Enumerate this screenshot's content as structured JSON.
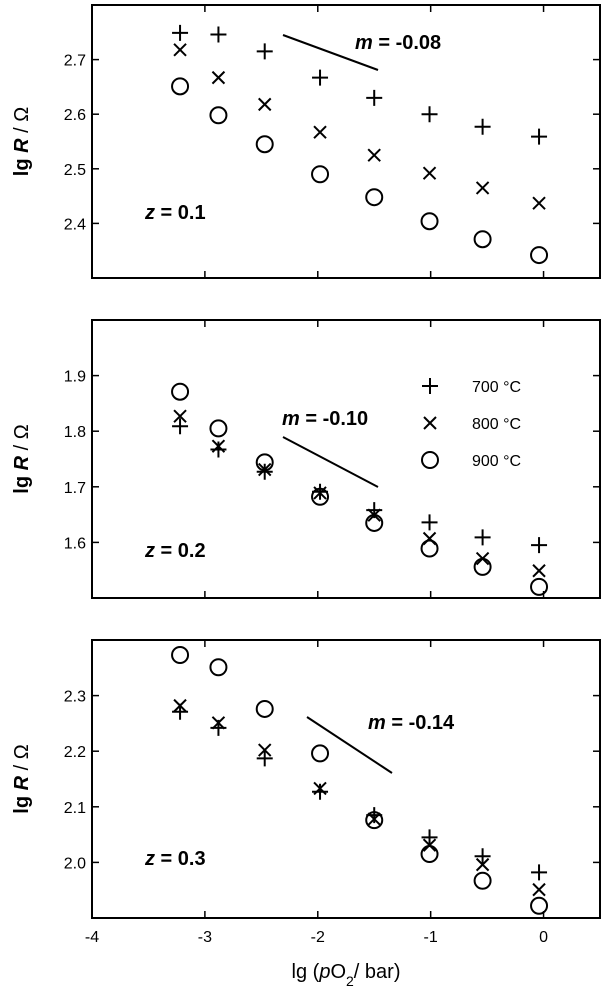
{
  "chart_data": [
    {
      "type": "scatter",
      "xlim": [
        -4,
        0.5
      ],
      "xticks": [
        -4,
        -3,
        -2,
        -1,
        0
      ],
      "ylim": [
        2.3,
        2.8
      ],
      "yticks": [
        2.4,
        2.5,
        2.6,
        2.7
      ],
      "x": [
        -3.22,
        -2.88,
        -2.47,
        -1.98,
        -1.5,
        -1.01,
        -0.54,
        -0.04
      ],
      "y_label": [
        "lg ",
        "R",
        " / Ω"
      ],
      "slope_text": [
        "m",
        " = -0.08"
      ],
      "z_text": [
        "z",
        " = 0.1"
      ],
      "series": [
        {
          "marker": "plus",
          "color": "#000000",
          "values": [
            2.749,
            2.746,
            2.715,
            2.667,
            2.63,
            2.6,
            2.577,
            2.559
          ]
        },
        {
          "marker": "cross",
          "color": "#000000",
          "values": [
            2.718,
            2.667,
            2.618,
            2.567,
            2.525,
            2.492,
            2.465,
            2.437
          ]
        },
        {
          "marker": "circle",
          "color": "#000000",
          "values": [
            2.651,
            2.598,
            2.545,
            2.49,
            2.448,
            2.404,
            2.371,
            2.342
          ]
        }
      ]
    },
    {
      "type": "scatter",
      "xlim": [
        -4,
        0.5
      ],
      "xticks": [
        -4,
        -3,
        -2,
        -1,
        0
      ],
      "ylim": [
        1.5,
        2.0
      ],
      "yticks": [
        1.6,
        1.7,
        1.8,
        1.9
      ],
      "x": [
        -3.22,
        -2.88,
        -2.47,
        -1.98,
        -1.5,
        -1.01,
        -0.54,
        -0.04
      ],
      "y_label": [
        "lg ",
        "R",
        " / Ω"
      ],
      "slope_text": [
        "m",
        " = -0.10"
      ],
      "z_text": [
        "z",
        " = 0.2"
      ],
      "legend": "upper right",
      "series": [
        {
          "name": "700 °C",
          "marker": "plus",
          "color": "#000000",
          "values": [
            1.809,
            1.767,
            1.727,
            1.691,
            1.658,
            1.636,
            1.609,
            1.595
          ]
        },
        {
          "name": "800 °C",
          "marker": "cross",
          "color": "#000000",
          "values": [
            1.827,
            1.773,
            1.731,
            1.689,
            1.649,
            1.607,
            1.571,
            1.549
          ]
        },
        {
          "name": "900 °C",
          "marker": "circle",
          "color": "#000000",
          "values": [
            1.871,
            1.805,
            1.744,
            1.682,
            1.635,
            1.589,
            1.556,
            1.52
          ]
        }
      ]
    },
    {
      "type": "scatter",
      "xlim": [
        -4,
        0.5
      ],
      "xticks": [
        -4,
        -3,
        -2,
        -1,
        0
      ],
      "ylim": [
        1.9,
        2.4
      ],
      "yticks": [
        {
          "value": 2,
          "label": "2.0"
        },
        2.1,
        2.2,
        2.3
      ],
      "x": [
        -3.22,
        -2.88,
        -2.47,
        -1.98,
        -1.5,
        -1.01,
        -0.54,
        -0.04
      ],
      "y_label": [
        "lg ",
        "R",
        " / Ω"
      ],
      "x_label": [
        "lg (",
        "p",
        "O",
        "2",
        "/ bar)"
      ],
      "slope_text": [
        "m",
        " = -0.14"
      ],
      "z_text": [
        "z",
        " = 0.3"
      ],
      "series": [
        {
          "marker": "plus",
          "color": "#000000",
          "values": [
            2.271,
            2.242,
            2.187,
            2.127,
            2.085,
            2.045,
            2.011,
            1.982
          ]
        },
        {
          "marker": "cross",
          "color": "#000000",
          "values": [
            2.282,
            2.251,
            2.202,
            2.133,
            2.078,
            2.031,
            1.996,
            1.951
          ]
        },
        {
          "marker": "circle",
          "color": "#000000",
          "values": [
            2.373,
            2.351,
            2.276,
            2.196,
            2.076,
            2.015,
            1.967,
            1.922
          ]
        }
      ]
    }
  ]
}
